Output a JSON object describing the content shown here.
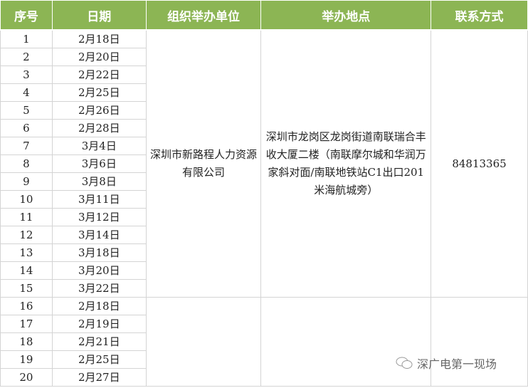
{
  "header": [
    "序号",
    "日期",
    "组织举办单位",
    "举办地点",
    "联系方式"
  ],
  "rows": [
    {
      "no": "1",
      "date": "2月18日"
    },
    {
      "no": "2",
      "date": "2月20日"
    },
    {
      "no": "3",
      "date": "2月22日"
    },
    {
      "no": "4",
      "date": "2月25日"
    },
    {
      "no": "5",
      "date": "2月26日"
    },
    {
      "no": "6",
      "date": "2月28日"
    },
    {
      "no": "7",
      "date": "3月4日"
    },
    {
      "no": "8",
      "date": "3月6日"
    },
    {
      "no": "9",
      "date": "3月8日"
    },
    {
      "no": "10",
      "date": "3月11日"
    },
    {
      "no": "11",
      "date": "3月12日"
    },
    {
      "no": "12",
      "date": "3月14日"
    },
    {
      "no": "13",
      "date": "3月18日"
    },
    {
      "no": "14",
      "date": "3月20日"
    },
    {
      "no": "15",
      "date": "3月22日"
    },
    {
      "no": "16",
      "date": "2月18日"
    },
    {
      "no": "17",
      "date": "2月19日"
    },
    {
      "no": "18",
      "date": "2月21日"
    },
    {
      "no": "19",
      "date": "2月25日"
    },
    {
      "no": "20",
      "date": "2月27日"
    }
  ],
  "group1": {
    "org": "深圳市新路程人力资源有限公司",
    "location": "深圳市龙岗区龙岗街道南联瑞合丰收大厦二楼（南联摩尔城和华润万家斜对面/南联地铁站C1出口201米海航城旁）",
    "contact": "84813365"
  },
  "watermark": "深广电第一现场",
  "colors": {
    "header": "#8cb554"
  }
}
